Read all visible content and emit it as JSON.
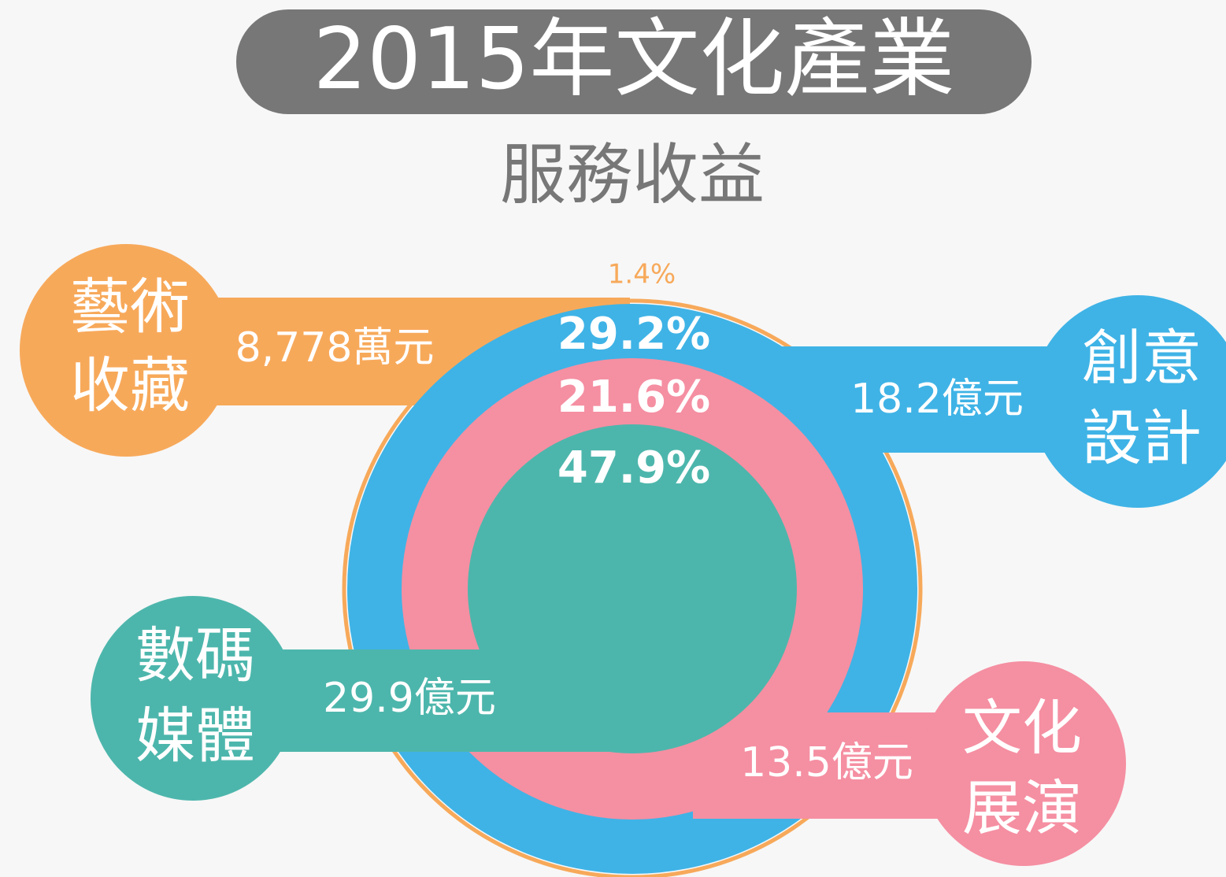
{
  "title": "2015年文化產業",
  "subtitle": "服務收益",
  "segments": [
    {
      "label_lines": [
        "藝術",
        "收藏"
      ],
      "amount": "8,778萬元",
      "percent": "1.4%"
    },
    {
      "label_lines": [
        "創意",
        "設計"
      ],
      "amount": "18.2億元",
      "percent": "29.2%"
    },
    {
      "label_lines": [
        "文化",
        "展演"
      ],
      "amount": "13.5億元",
      "percent": "21.6%"
    },
    {
      "label_lines": [
        "數碼",
        "媒體"
      ],
      "amount": "29.9億元",
      "percent": "47.9%"
    }
  ]
}
